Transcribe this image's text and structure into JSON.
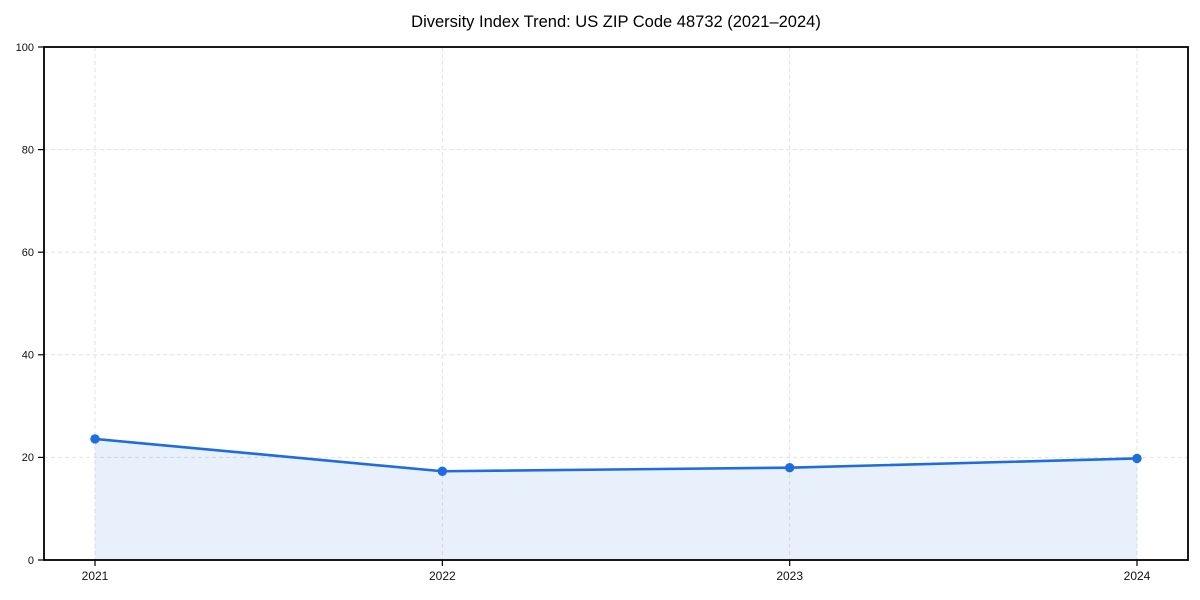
{
  "chart_data": {
    "type": "area",
    "title": "Diversity Index Trend: US ZIP Code 48732 (2021–2024)",
    "categories": [
      "2021",
      "2022",
      "2023",
      "2024"
    ],
    "series": [
      {
        "name": "Diversity Index",
        "values": [
          23.6,
          17.3,
          18.0,
          19.8
        ]
      }
    ],
    "xlabel": "",
    "ylabel": "",
    "ylim": [
      0,
      100
    ],
    "yticks": [
      0,
      20,
      40,
      60,
      80,
      100
    ],
    "grid": "dashed-both",
    "legend": "none",
    "colors": {
      "line": "#1f6be0",
      "marker": "#1f6be0",
      "fill": "#1f6be0",
      "fill_opacity": 0.1,
      "grid": "#e2e2e2",
      "axis": "#000000",
      "tick_text": "#111111",
      "background": "#ffffff"
    }
  }
}
